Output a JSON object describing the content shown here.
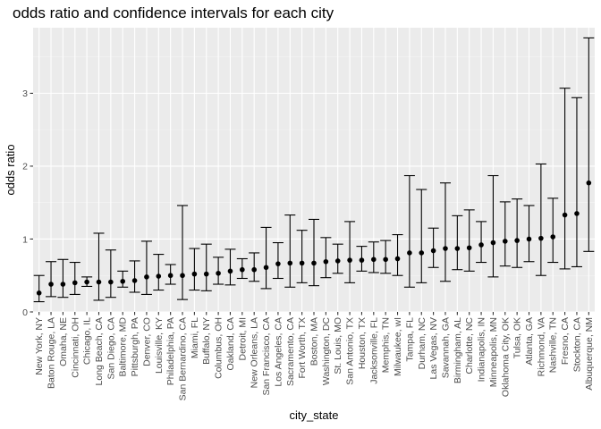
{
  "chart_data": {
    "type": "scatter",
    "title": "odds ratio and confidence intervals for each city",
    "xlabel": "city_state",
    "ylabel": "odds ratio",
    "ylim": [
      0,
      3.9
    ],
    "yticks": [
      0,
      1,
      2,
      3
    ],
    "grid": true,
    "legend": "none",
    "colors": {
      "panel": "#EBEBEB",
      "grid_major": "#FFFFFF",
      "grid_minor": "#F5F5F5",
      "point": "#000000",
      "tick_text": "#4D4D4D"
    },
    "categories": [
      "New York, NY",
      "Baton Rouge, LA",
      "Omaha, NE",
      "Cincinnati, OH",
      "Chicago, IL",
      "Long Beach, CA",
      "San Diego, CA",
      "Baltimore, MD",
      "Pittsburgh, PA",
      "Denver, CO",
      "Louisville, KY",
      "Philadelphia, PA",
      "San Bernardino, CA",
      "Miami, FL",
      "Buffalo, NY",
      "Columbus, OH",
      "Oakland, CA",
      "Detroit, MI",
      "New Orleans, LA",
      "San Francisco, CA",
      "Los Angeles, CA",
      "Sacramento, CA",
      "Fort Worth, TX",
      "Boston, MA",
      "Washington, DC",
      "St. Louis, MO",
      "San Antonio, TX",
      "Houston, TX",
      "Jacksonville, FL",
      "Memphis, TN",
      "Milwaukee, wI",
      "Tampa, FL",
      "Durham, NC",
      "Las Vegas, NV",
      "Savannah, GA",
      "Birmingham, AL",
      "Charlotte, NC",
      "Indianapolis, IN",
      "Minneapolis, MN",
      "Oklahoma City, OK",
      "Tulsa, OK",
      "Atlanta, GA",
      "Richmond, VA",
      "Nashville, TN",
      "Fresno, CA",
      "Stockton, CA",
      "Albuquerque, NM"
    ],
    "estimate": [
      0.26,
      0.38,
      0.38,
      0.4,
      0.41,
      0.41,
      0.41,
      0.42,
      0.43,
      0.48,
      0.49,
      0.5,
      0.5,
      0.52,
      0.52,
      0.53,
      0.56,
      0.58,
      0.58,
      0.61,
      0.66,
      0.67,
      0.67,
      0.67,
      0.69,
      0.7,
      0.71,
      0.71,
      0.72,
      0.72,
      0.73,
      0.81,
      0.81,
      0.84,
      0.87,
      0.87,
      0.88,
      0.92,
      0.95,
      0.97,
      0.98,
      1.0,
      1.01,
      1.03,
      1.33,
      1.35,
      1.77
    ],
    "ci_low": [
      0.14,
      0.21,
      0.2,
      0.24,
      0.35,
      0.16,
      0.2,
      0.34,
      0.27,
      0.24,
      0.3,
      0.38,
      0.17,
      0.3,
      0.29,
      0.38,
      0.37,
      0.46,
      0.42,
      0.32,
      0.46,
      0.34,
      0.4,
      0.36,
      0.47,
      0.53,
      0.4,
      0.56,
      0.54,
      0.53,
      0.5,
      0.34,
      0.4,
      0.61,
      0.42,
      0.58,
      0.56,
      0.68,
      0.48,
      0.63,
      0.61,
      0.69,
      0.5,
      0.68,
      0.59,
      0.62,
      0.83
    ],
    "ci_high": [
      0.5,
      0.69,
      0.72,
      0.68,
      0.48,
      1.08,
      0.85,
      0.56,
      0.7,
      0.97,
      0.79,
      0.65,
      1.46,
      0.87,
      0.93,
      0.75,
      0.86,
      0.73,
      0.81,
      1.16,
      0.95,
      1.33,
      1.12,
      1.27,
      1.02,
      0.93,
      1.24,
      0.9,
      0.96,
      0.98,
      1.06,
      1.87,
      1.68,
      1.15,
      1.77,
      1.32,
      1.4,
      1.24,
      1.87,
      1.51,
      1.55,
      1.46,
      2.03,
      1.56,
      3.07,
      2.94,
      3.76
    ]
  }
}
